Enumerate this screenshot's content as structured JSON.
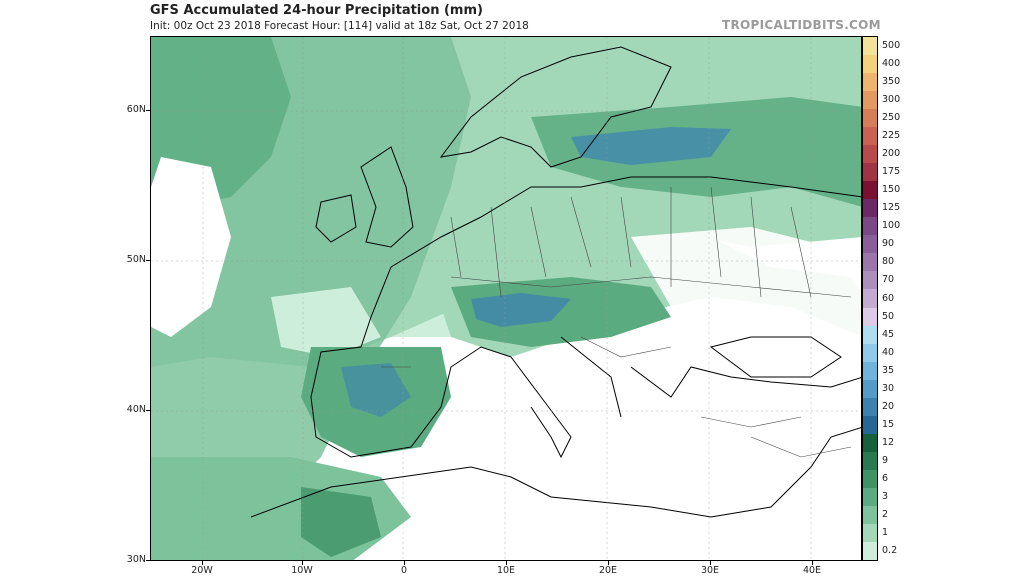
{
  "header": {
    "title": "GFS Accumulated 24-hour Precipitation (mm)",
    "subtitle": "Init: 00z Oct 23 2018   Forecast Hour: [114]   valid at 18z Sat, Oct 27 2018",
    "brand": "TROPICALTIDBITS.COM"
  },
  "axes": {
    "lat_labels": [
      "60N",
      "50N",
      "40N",
      "30N"
    ],
    "lon_labels": [
      "20W",
      "10W",
      "0",
      "10E",
      "20E",
      "30E",
      "40E"
    ]
  },
  "colorbar": {
    "levels": [
      {
        "label": "500",
        "color": "#f3e39a"
      },
      {
        "label": "400",
        "color": "#f2d27a"
      },
      {
        "label": "350",
        "color": "#eeb66c"
      },
      {
        "label": "300",
        "color": "#e39a60"
      },
      {
        "label": "250",
        "color": "#d67e58"
      },
      {
        "label": "225",
        "color": "#c96252"
      },
      {
        "label": "200",
        "color": "#b84a4c"
      },
      {
        "label": "175",
        "color": "#a03444"
      },
      {
        "label": "150",
        "color": "#7a1034"
      },
      {
        "label": "125",
        "color": "#6a2a66"
      },
      {
        "label": "100",
        "color": "#7b4a86"
      },
      {
        "label": "90",
        "color": "#8a5f99"
      },
      {
        "label": "80",
        "color": "#9b76aa"
      },
      {
        "label": "70",
        "color": "#ad8fbd"
      },
      {
        "label": "60",
        "color": "#c3aad1"
      },
      {
        "label": "50",
        "color": "#dccbe6"
      },
      {
        "label": "45",
        "color": "#aedcf0"
      },
      {
        "label": "40",
        "color": "#8fcae8"
      },
      {
        "label": "35",
        "color": "#70b4dc"
      },
      {
        "label": "30",
        "color": "#549cc8"
      },
      {
        "label": "20",
        "color": "#3b82b0"
      },
      {
        "label": "15",
        "color": "#236896"
      },
      {
        "label": "12",
        "color": "#17603c"
      },
      {
        "label": "9",
        "color": "#2a7a50"
      },
      {
        "label": "6",
        "color": "#3e9366"
      },
      {
        "label": "3",
        "color": "#5bab80"
      },
      {
        "label": "2",
        "color": "#7cc29b"
      },
      {
        "label": "1",
        "color": "#a2d8b8"
      },
      {
        "label": "0.2",
        "color": "#cdeedb"
      }
    ]
  }
}
